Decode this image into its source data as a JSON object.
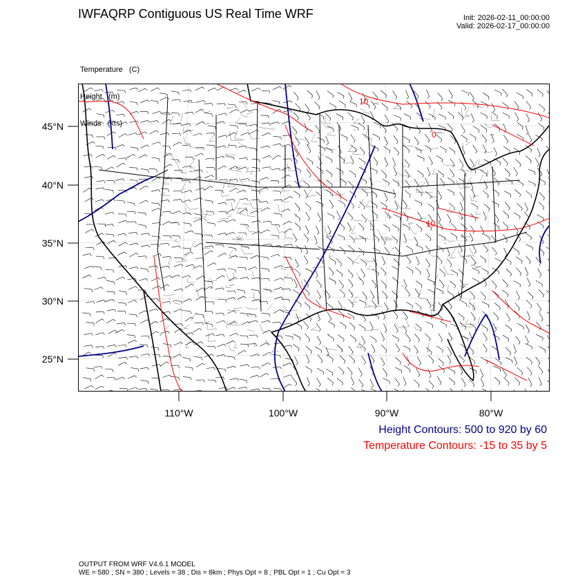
{
  "header": {
    "title": "IWFAQRP Contiguous US Real Time WRF",
    "init": "Init: 2026-02-11_00:00:00",
    "valid": "Valid: 2026-02-17_00:00:00"
  },
  "variables": [
    "Temperature   (C)",
    "Height   (m)",
    "Winds   (kts)"
  ],
  "map": {
    "lat_labels": [
      "45°N",
      "40°N",
      "35°N",
      "30°N",
      "25°N"
    ],
    "lon_labels": [
      "110°W",
      "100°W",
      "90°W",
      "80°W"
    ],
    "contour_labels": [
      "10",
      "10",
      "0"
    ],
    "colors": {
      "height": "#00008b",
      "temperature": "#ff0000",
      "boundaries": "#000000",
      "wind_barbs": "#000000",
      "grid": "#c8c8c8"
    }
  },
  "legend": {
    "height": "Height Contours: 500 to 920 by 60",
    "temperature": "Temperature Contours: -15 to 35 by 5"
  },
  "footer": {
    "line1": "OUTPUT FROM WRF V4.6.1 MODEL",
    "line2": "WE = 580 ; SN = 380 ; Levels = 38 ; Dis = 8km ; Phys Opt = 8 ; PBL Opt = 1 ; Cu Opt = 3"
  }
}
